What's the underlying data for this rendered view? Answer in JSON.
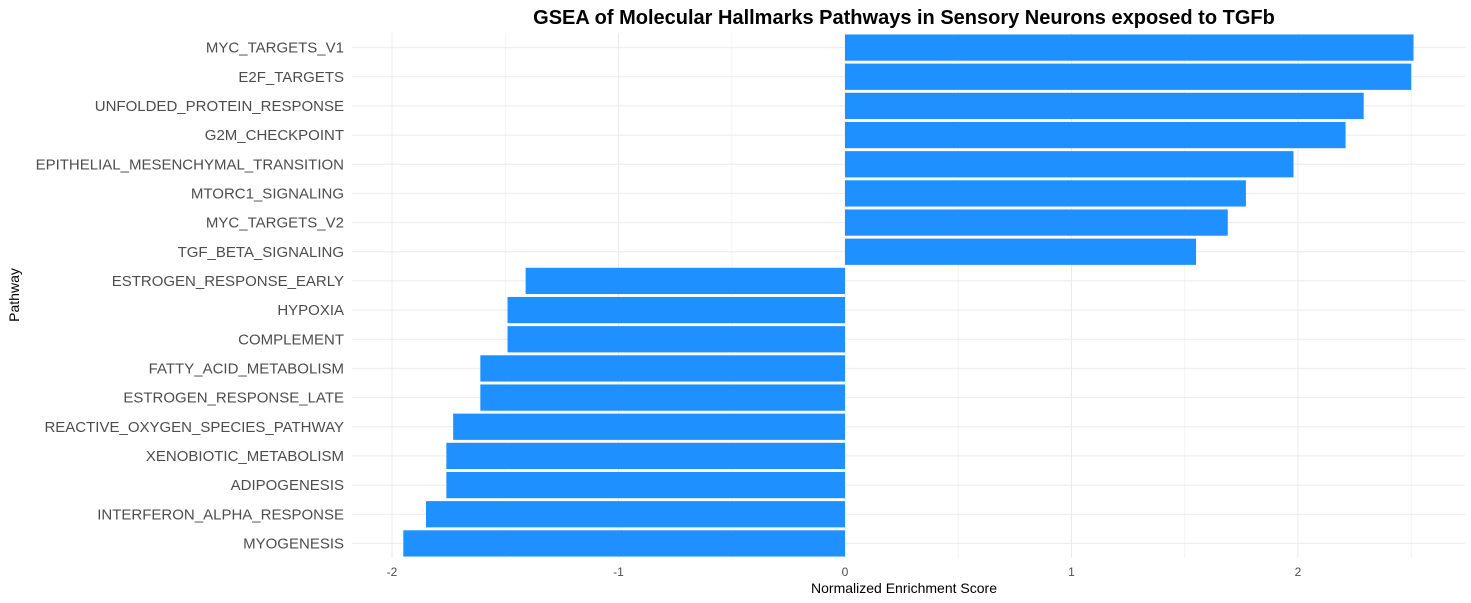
{
  "chart_data": {
    "type": "bar",
    "orientation": "horizontal",
    "title": "GSEA of Molecular Hallmarks Pathways in Sensory Neurons exposed to TGFb",
    "xlabel": "Normalized Enrichment Score",
    "ylabel": "Pathway",
    "xlim": [
      -2.07,
      2.61
    ],
    "xticks": [
      "-2",
      "-1",
      "0",
      "1",
      "2"
    ],
    "xtick_values": [
      -2,
      -1,
      0,
      1,
      2
    ],
    "grid": true,
    "legend": "none",
    "bar_color": "#1e90ff",
    "categories": [
      "MYC_TARGETS_V1",
      "E2F_TARGETS",
      "UNFOLDED_PROTEIN_RESPONSE",
      "G2M_CHECKPOINT",
      "EPITHELIAL_MESENCHYMAL_TRANSITION",
      "MTORC1_SIGNALING",
      "MYC_TARGETS_V2",
      "TGF_BETA_SIGNALING",
      "ESTROGEN_RESPONSE_EARLY",
      "HYPOXIA",
      "COMPLEMENT",
      "FATTY_ACID_METABOLISM",
      "ESTROGEN_RESPONSE_LATE",
      "REACTIVE_OXYGEN_SPECIES_PATHWAY",
      "XENOBIOTIC_METABOLISM",
      "ADIPOGENESIS",
      "INTERFERON_ALPHA_RESPONSE",
      "MYOGENESIS"
    ],
    "values": [
      2.51,
      2.5,
      2.29,
      2.21,
      1.98,
      1.77,
      1.69,
      1.55,
      -1.41,
      -1.49,
      -1.49,
      -1.61,
      -1.61,
      -1.73,
      -1.76,
      -1.76,
      -1.85,
      -1.95
    ]
  }
}
